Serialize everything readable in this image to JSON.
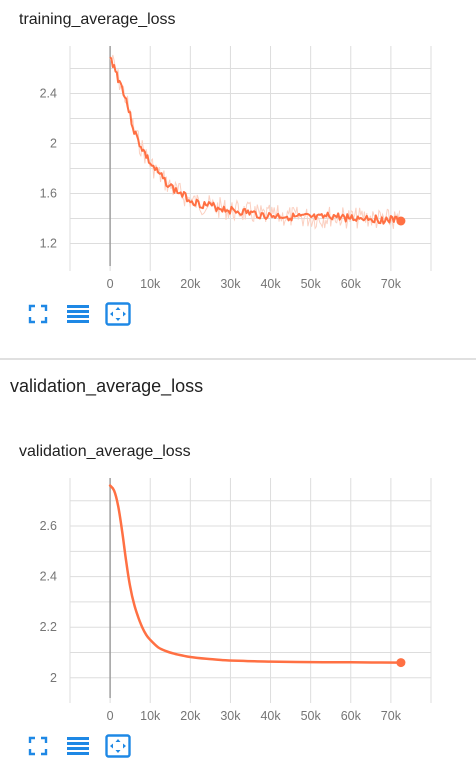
{
  "colors": {
    "accent": "#ff7043",
    "accent_light": "#fbd0c1",
    "toolbar_icon": "#1e88e5",
    "grid": "#dddddd",
    "axis_zero": "#9e9e9e"
  },
  "toolbar": {
    "icons": [
      "fullscreen-icon",
      "data-table-icon",
      "fit-domain-icon"
    ]
  },
  "cards": [
    {
      "title": "training_average_loss"
    },
    {
      "section_title": "validation_average_loss",
      "title": "validation_average_loss"
    }
  ],
  "chart_data": [
    {
      "type": "line",
      "title": "training_average_loss",
      "xlabel": "",
      "ylabel": "",
      "xlim": [
        -10000,
        80000
      ],
      "ylim": [
        1.02,
        2.78
      ],
      "x_ticks": [
        0,
        10000,
        20000,
        30000,
        40000,
        50000,
        60000,
        70000
      ],
      "x_tick_labels": [
        "0",
        "10k",
        "20k",
        "30k",
        "40k",
        "50k",
        "60k",
        "70k"
      ],
      "y_ticks": [
        1.2,
        1.6,
        2,
        2.4
      ],
      "y_tick_labels": [
        "1.2",
        "1.6",
        "2",
        "2.4"
      ],
      "grid": true,
      "series": [
        {
          "x": [
            0,
            1000,
            2000,
            3000,
            4000,
            5000,
            6000,
            7000,
            8000,
            9000,
            10000,
            12000,
            14000,
            16000,
            18000,
            20000,
            22000,
            25000,
            28000,
            31000,
            34000,
            37000,
            40000,
            43000,
            46000,
            49000,
            52000,
            55000,
            58000,
            61000,
            64000,
            67000,
            70000,
            72500
          ],
          "y": [
            2.68,
            2.62,
            2.52,
            2.45,
            2.35,
            2.22,
            2.1,
            2.02,
            1.96,
            1.9,
            1.84,
            1.76,
            1.69,
            1.63,
            1.59,
            1.55,
            1.52,
            1.5,
            1.48,
            1.46,
            1.45,
            1.43,
            1.42,
            1.42,
            1.41,
            1.41,
            1.4,
            1.42,
            1.41,
            1.4,
            1.41,
            1.39,
            1.39,
            1.38
          ],
          "endpoint": [
            72500,
            1.38
          ]
        }
      ]
    },
    {
      "type": "line",
      "title": "validation_average_loss",
      "xlabel": "",
      "ylabel": "",
      "xlim": [
        -10000,
        80000
      ],
      "ylim": [
        1.92,
        2.79
      ],
      "x_ticks": [
        0,
        10000,
        20000,
        30000,
        40000,
        50000,
        60000,
        70000
      ],
      "x_tick_labels": [
        "0",
        "10k",
        "20k",
        "30k",
        "40k",
        "50k",
        "60k",
        "70k"
      ],
      "y_ticks": [
        2,
        2.2,
        2.4,
        2.6
      ],
      "y_tick_labels": [
        "2",
        "2.2",
        "2.4",
        "2.6"
      ],
      "grid": true,
      "series": [
        {
          "x": [
            0,
            1000,
            2000,
            3000,
            4000,
            5000,
            6000,
            7000,
            8000,
            9000,
            10000,
            12000,
            14000,
            16000,
            18000,
            20000,
            24000,
            28000,
            32000,
            36000,
            40000,
            50000,
            60000,
            72500
          ],
          "y": [
            2.76,
            2.74,
            2.68,
            2.58,
            2.46,
            2.36,
            2.29,
            2.24,
            2.2,
            2.17,
            2.15,
            2.12,
            2.105,
            2.095,
            2.088,
            2.082,
            2.075,
            2.07,
            2.067,
            2.065,
            2.064,
            2.062,
            2.061,
            2.06
          ],
          "endpoint": [
            72500,
            2.06
          ]
        }
      ]
    }
  ]
}
